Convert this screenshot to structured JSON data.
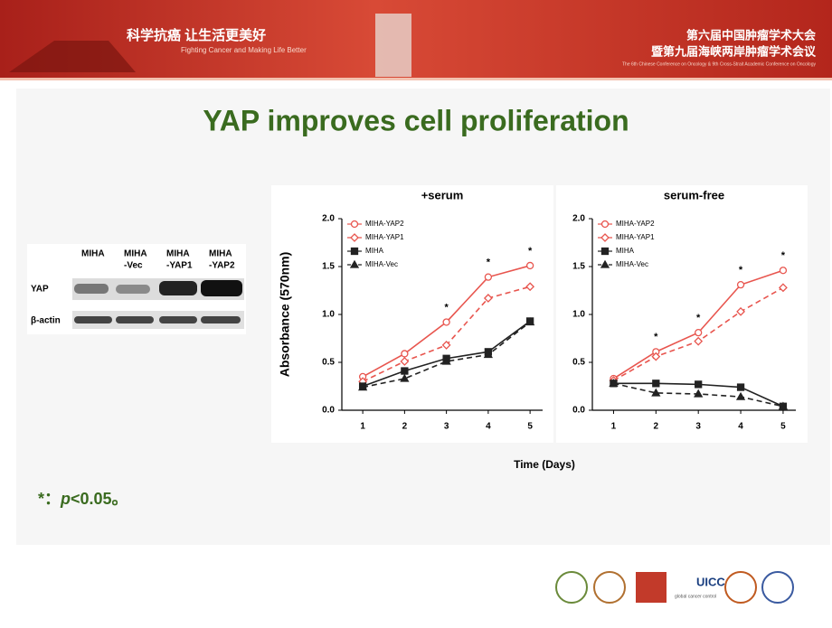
{
  "header": {
    "slogan_cn": "科学抗癌 让生活更美好",
    "slogan_en": "Fighting Cancer and Making Life Better",
    "conference_cn_1": "第六届中国肿瘤学术大会",
    "conference_cn_2": "暨第九届海峡两岸肿瘤学术会议",
    "conference_en": "The 6th Chinese Conference on Oncology & 9th Cross-Strait Academic Conference on Oncology"
  },
  "title": "YAP improves cell proliferation",
  "blot": {
    "lanes": [
      [
        "MIHA"
      ],
      [
        "MIHA",
        "-Vec"
      ],
      [
        "MIHA",
        "-YAP1"
      ],
      [
        "MIHA",
        "-YAP2"
      ]
    ],
    "rows": [
      "YAP",
      "β-actin"
    ]
  },
  "figure": {
    "ylabel": "Absorbance (570nm)",
    "xlabel": "Time (Days)"
  },
  "chart_data": [
    {
      "type": "line",
      "title": "+serum",
      "x": [
        1,
        2,
        3,
        4,
        5
      ],
      "xlim": [
        0.5,
        5.3
      ],
      "xticks": [
        1,
        2,
        3,
        4,
        5
      ],
      "ylim": [
        0,
        2
      ],
      "yticks": [
        {
          "value": 0,
          "label": "0.0"
        },
        0.5,
        {
          "value": 1,
          "label": "1.0"
        },
        1.5,
        {
          "value": 2,
          "label": "2.0"
        }
      ],
      "legend": "upper left",
      "series": [
        {
          "name": "MIHA-YAP2",
          "color": "#e8554e",
          "marker": "circle-open",
          "dashed": false,
          "values": [
            0.35,
            0.59,
            0.92,
            1.39,
            1.51
          ]
        },
        {
          "name": "MIHA-YAP1",
          "color": "#e8554e",
          "marker": "diamond-open",
          "dashed": true,
          "values": [
            0.3,
            0.51,
            0.68,
            1.17,
            1.29
          ]
        },
        {
          "name": "MIHA",
          "color": "#222222",
          "marker": "square",
          "dashed": false,
          "values": [
            0.25,
            0.41,
            0.54,
            0.61,
            0.93
          ]
        },
        {
          "name": "MIHA-Vec",
          "color": "#222222",
          "marker": "triangle",
          "dashed": true,
          "values": [
            0.24,
            0.33,
            0.51,
            0.58,
            0.92
          ]
        }
      ],
      "annotations": [
        {
          "x": 3,
          "label": "*"
        },
        {
          "x": 4,
          "label": "*"
        },
        {
          "x": 5,
          "label": "*"
        }
      ]
    },
    {
      "type": "line",
      "title": "serum-free",
      "x": [
        1,
        2,
        3,
        4,
        5
      ],
      "xlim": [
        0.5,
        5.3
      ],
      "xticks": [
        1,
        2,
        3,
        4,
        5
      ],
      "ylim": [
        0,
        2
      ],
      "yticks": [
        {
          "value": 0,
          "label": "0.0"
        },
        0.5,
        {
          "value": 1,
          "label": "1.0"
        },
        1.5,
        {
          "value": 2,
          "label": "2.0"
        }
      ],
      "legend": "upper left",
      "series": [
        {
          "name": "MIHA-YAP2",
          "color": "#e8554e",
          "marker": "circle-open",
          "dashed": false,
          "values": [
            0.33,
            0.61,
            0.81,
            1.31,
            1.46
          ]
        },
        {
          "name": "MIHA-YAP1",
          "color": "#e8554e",
          "marker": "diamond-open",
          "dashed": true,
          "values": [
            0.31,
            0.56,
            0.72,
            1.03,
            1.28
          ]
        },
        {
          "name": "MIHA",
          "color": "#222222",
          "marker": "square",
          "dashed": false,
          "values": [
            0.28,
            0.28,
            0.27,
            0.24,
            0.04
          ]
        },
        {
          "name": "MIHA-Vec",
          "color": "#222222",
          "marker": "triangle",
          "dashed": true,
          "values": [
            0.28,
            0.18,
            0.17,
            0.14,
            0.04
          ]
        }
      ],
      "annotations": [
        {
          "x": 2,
          "label": "*"
        },
        {
          "x": 3,
          "label": "*"
        },
        {
          "x": 4,
          "label": "*"
        },
        {
          "x": 5,
          "label": "*"
        }
      ]
    }
  ],
  "footnote": {
    "star": "*：",
    "p": "p",
    "rest": "<0.05。"
  },
  "logos": {
    "uicc": "UICC",
    "uicc_sub": "global cancer control"
  }
}
